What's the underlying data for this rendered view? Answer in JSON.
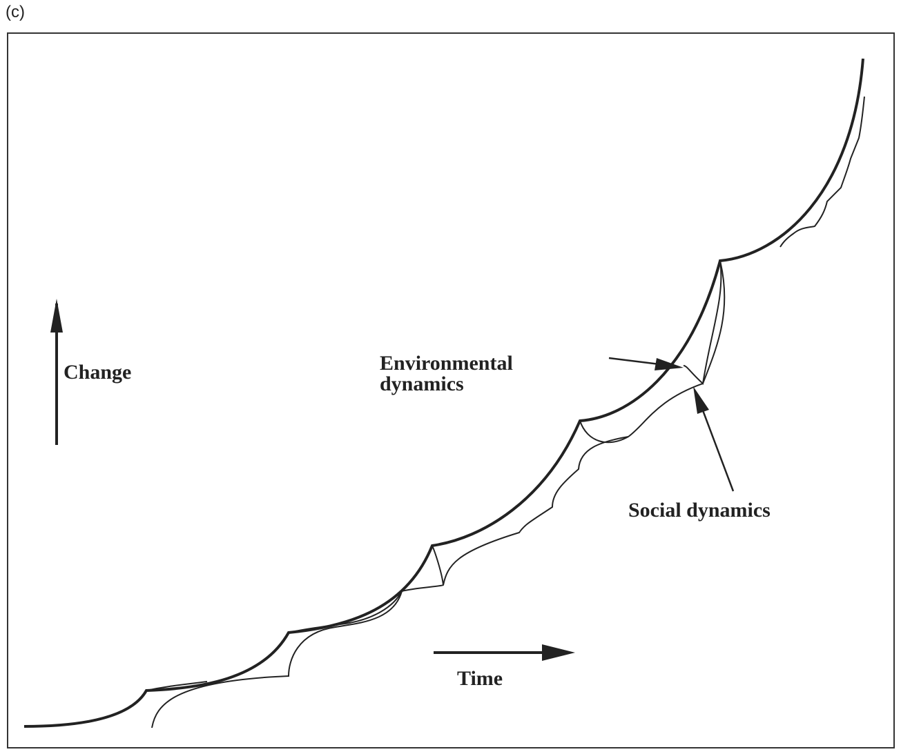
{
  "panel_label": "(c)",
  "labels": {
    "change": "Change",
    "environmental_line1": "Environmental",
    "environmental_line2": "dynamics",
    "social": "Social dynamics",
    "time": "Time"
  },
  "colors": {
    "ink": "#222222",
    "frame": "#333333",
    "background": "#ffffff"
  }
}
